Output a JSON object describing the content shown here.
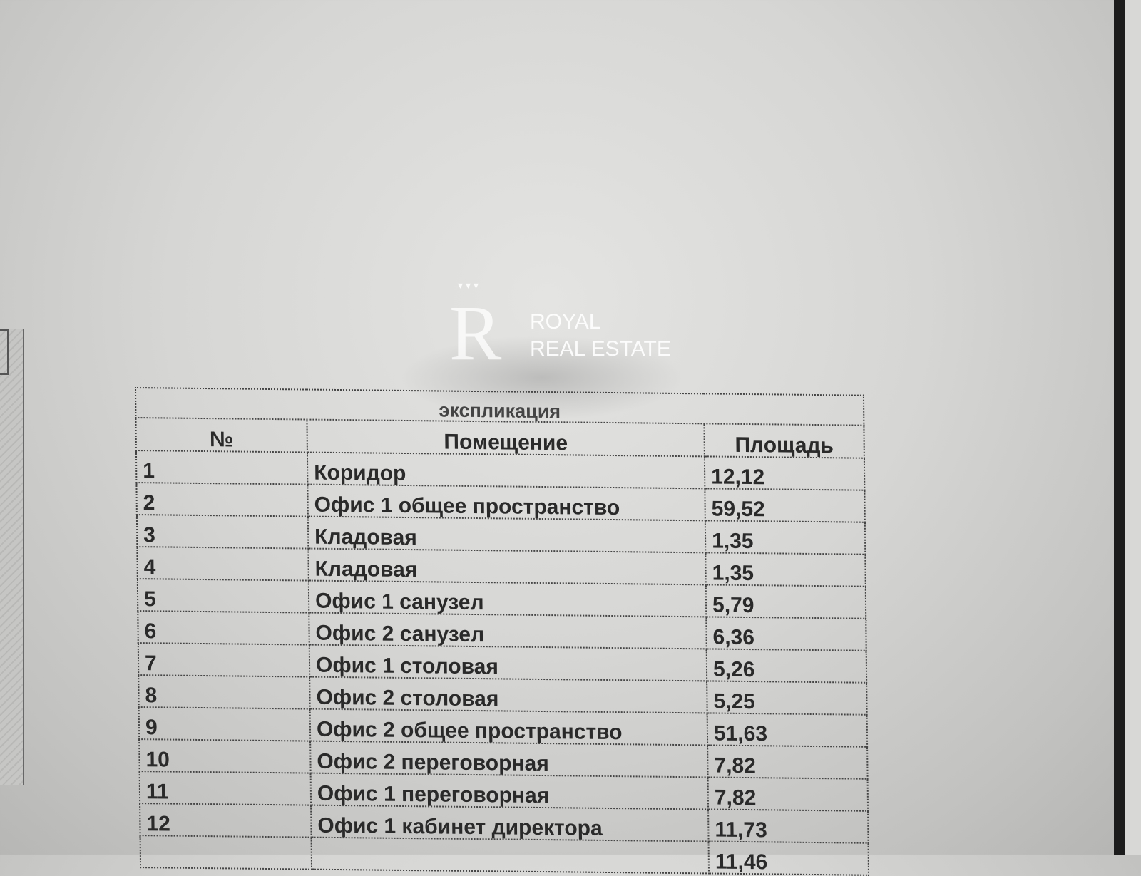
{
  "table": {
    "title": "экспликация",
    "headers": {
      "number": "№",
      "room": "Помещение",
      "area": "Площадь"
    },
    "rows": [
      {
        "n": "1",
        "room": "Коридор",
        "area": "12,12"
      },
      {
        "n": "2",
        "room": "Офис 1 общее пространство",
        "area": "59,52"
      },
      {
        "n": "3",
        "room": "Кладовая",
        "area": "1,35"
      },
      {
        "n": "4",
        "room": "Кладовая",
        "area": "1,35"
      },
      {
        "n": "5",
        "room": "Офис 1 санузел",
        "area": "5,79"
      },
      {
        "n": "6",
        "room": "Офис 2 санузел",
        "area": "6,36"
      },
      {
        "n": "7",
        "room": "Офис 1 столовая",
        "area": "5,26"
      },
      {
        "n": "8",
        "room": "Офис 2 столовая",
        "area": "5,25"
      },
      {
        "n": "9",
        "room": "Офис 2 общее пространство",
        "area": "51,63"
      },
      {
        "n": "10",
        "room": "Офис 2 переговорная",
        "area": "7,82"
      },
      {
        "n": "11",
        "room": "Офис 1 переговорная",
        "area": "7,82"
      },
      {
        "n": "12",
        "room": "Офис 1 кабинет директора",
        "area": "11,73"
      },
      {
        "n": "",
        "room": "",
        "area": "11,46"
      }
    ]
  },
  "watermark": {
    "line1": "ROYAL",
    "line2": "REAL ESTATE",
    "logo_letter": "R"
  }
}
